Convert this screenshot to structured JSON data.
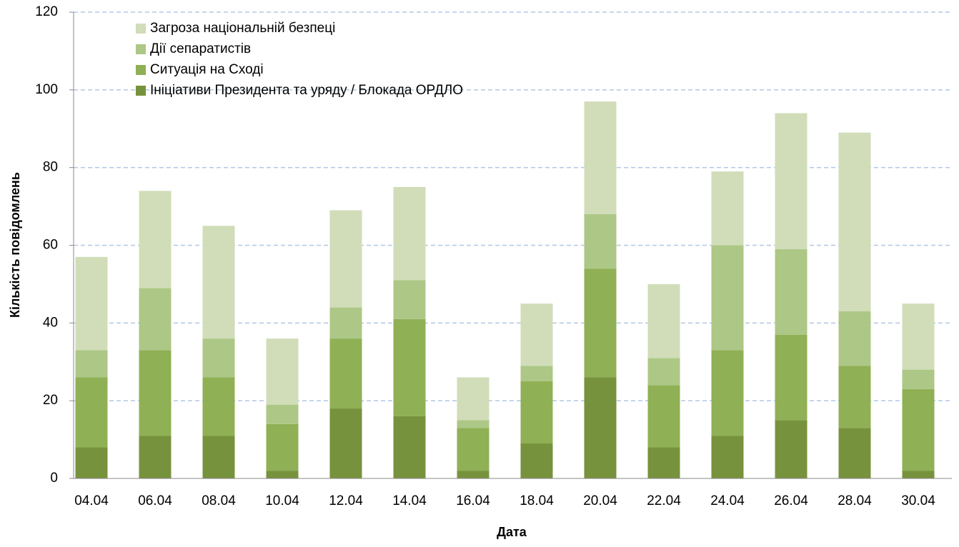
{
  "chart_data": {
    "type": "stacked_bar",
    "x_label": "Дата",
    "y_label": "Кількість повідомлень",
    "categories": [
      "04.04",
      "06.04",
      "08.04",
      "10.04",
      "12.04",
      "14.04",
      "16.04",
      "18.04",
      "20.04",
      "22.04",
      "24.04",
      "26.04",
      "28.04",
      "30.04"
    ],
    "series": [
      {
        "name": "Ініціативи Президента та уряду / Блокада ОРДЛО",
        "color": "#77923c",
        "values": [
          8,
          11,
          11,
          2,
          18,
          16,
          2,
          9,
          26,
          8,
          11,
          15,
          13,
          2
        ]
      },
      {
        "name": "Ситуація на Сході",
        "color": "#8fb055",
        "values": [
          18,
          22,
          15,
          12,
          18,
          25,
          11,
          16,
          28,
          16,
          22,
          22,
          16,
          21
        ]
      },
      {
        "name": "Дії сепаратистів",
        "color": "#adc786",
        "values": [
          7,
          16,
          10,
          5,
          8,
          10,
          2,
          4,
          14,
          7,
          27,
          22,
          14,
          5
        ]
      },
      {
        "name": "Загроза національній безпеці",
        "color": "#d0ddb8",
        "values": [
          24,
          25,
          29,
          17,
          25,
          24,
          11,
          16,
          29,
          19,
          19,
          35,
          46,
          17
        ]
      }
    ],
    "ylim": [
      0,
      120
    ],
    "yticks": [
      0,
      20,
      40,
      60,
      80,
      100,
      120
    ],
    "grid": true,
    "legend": "top-left"
  }
}
